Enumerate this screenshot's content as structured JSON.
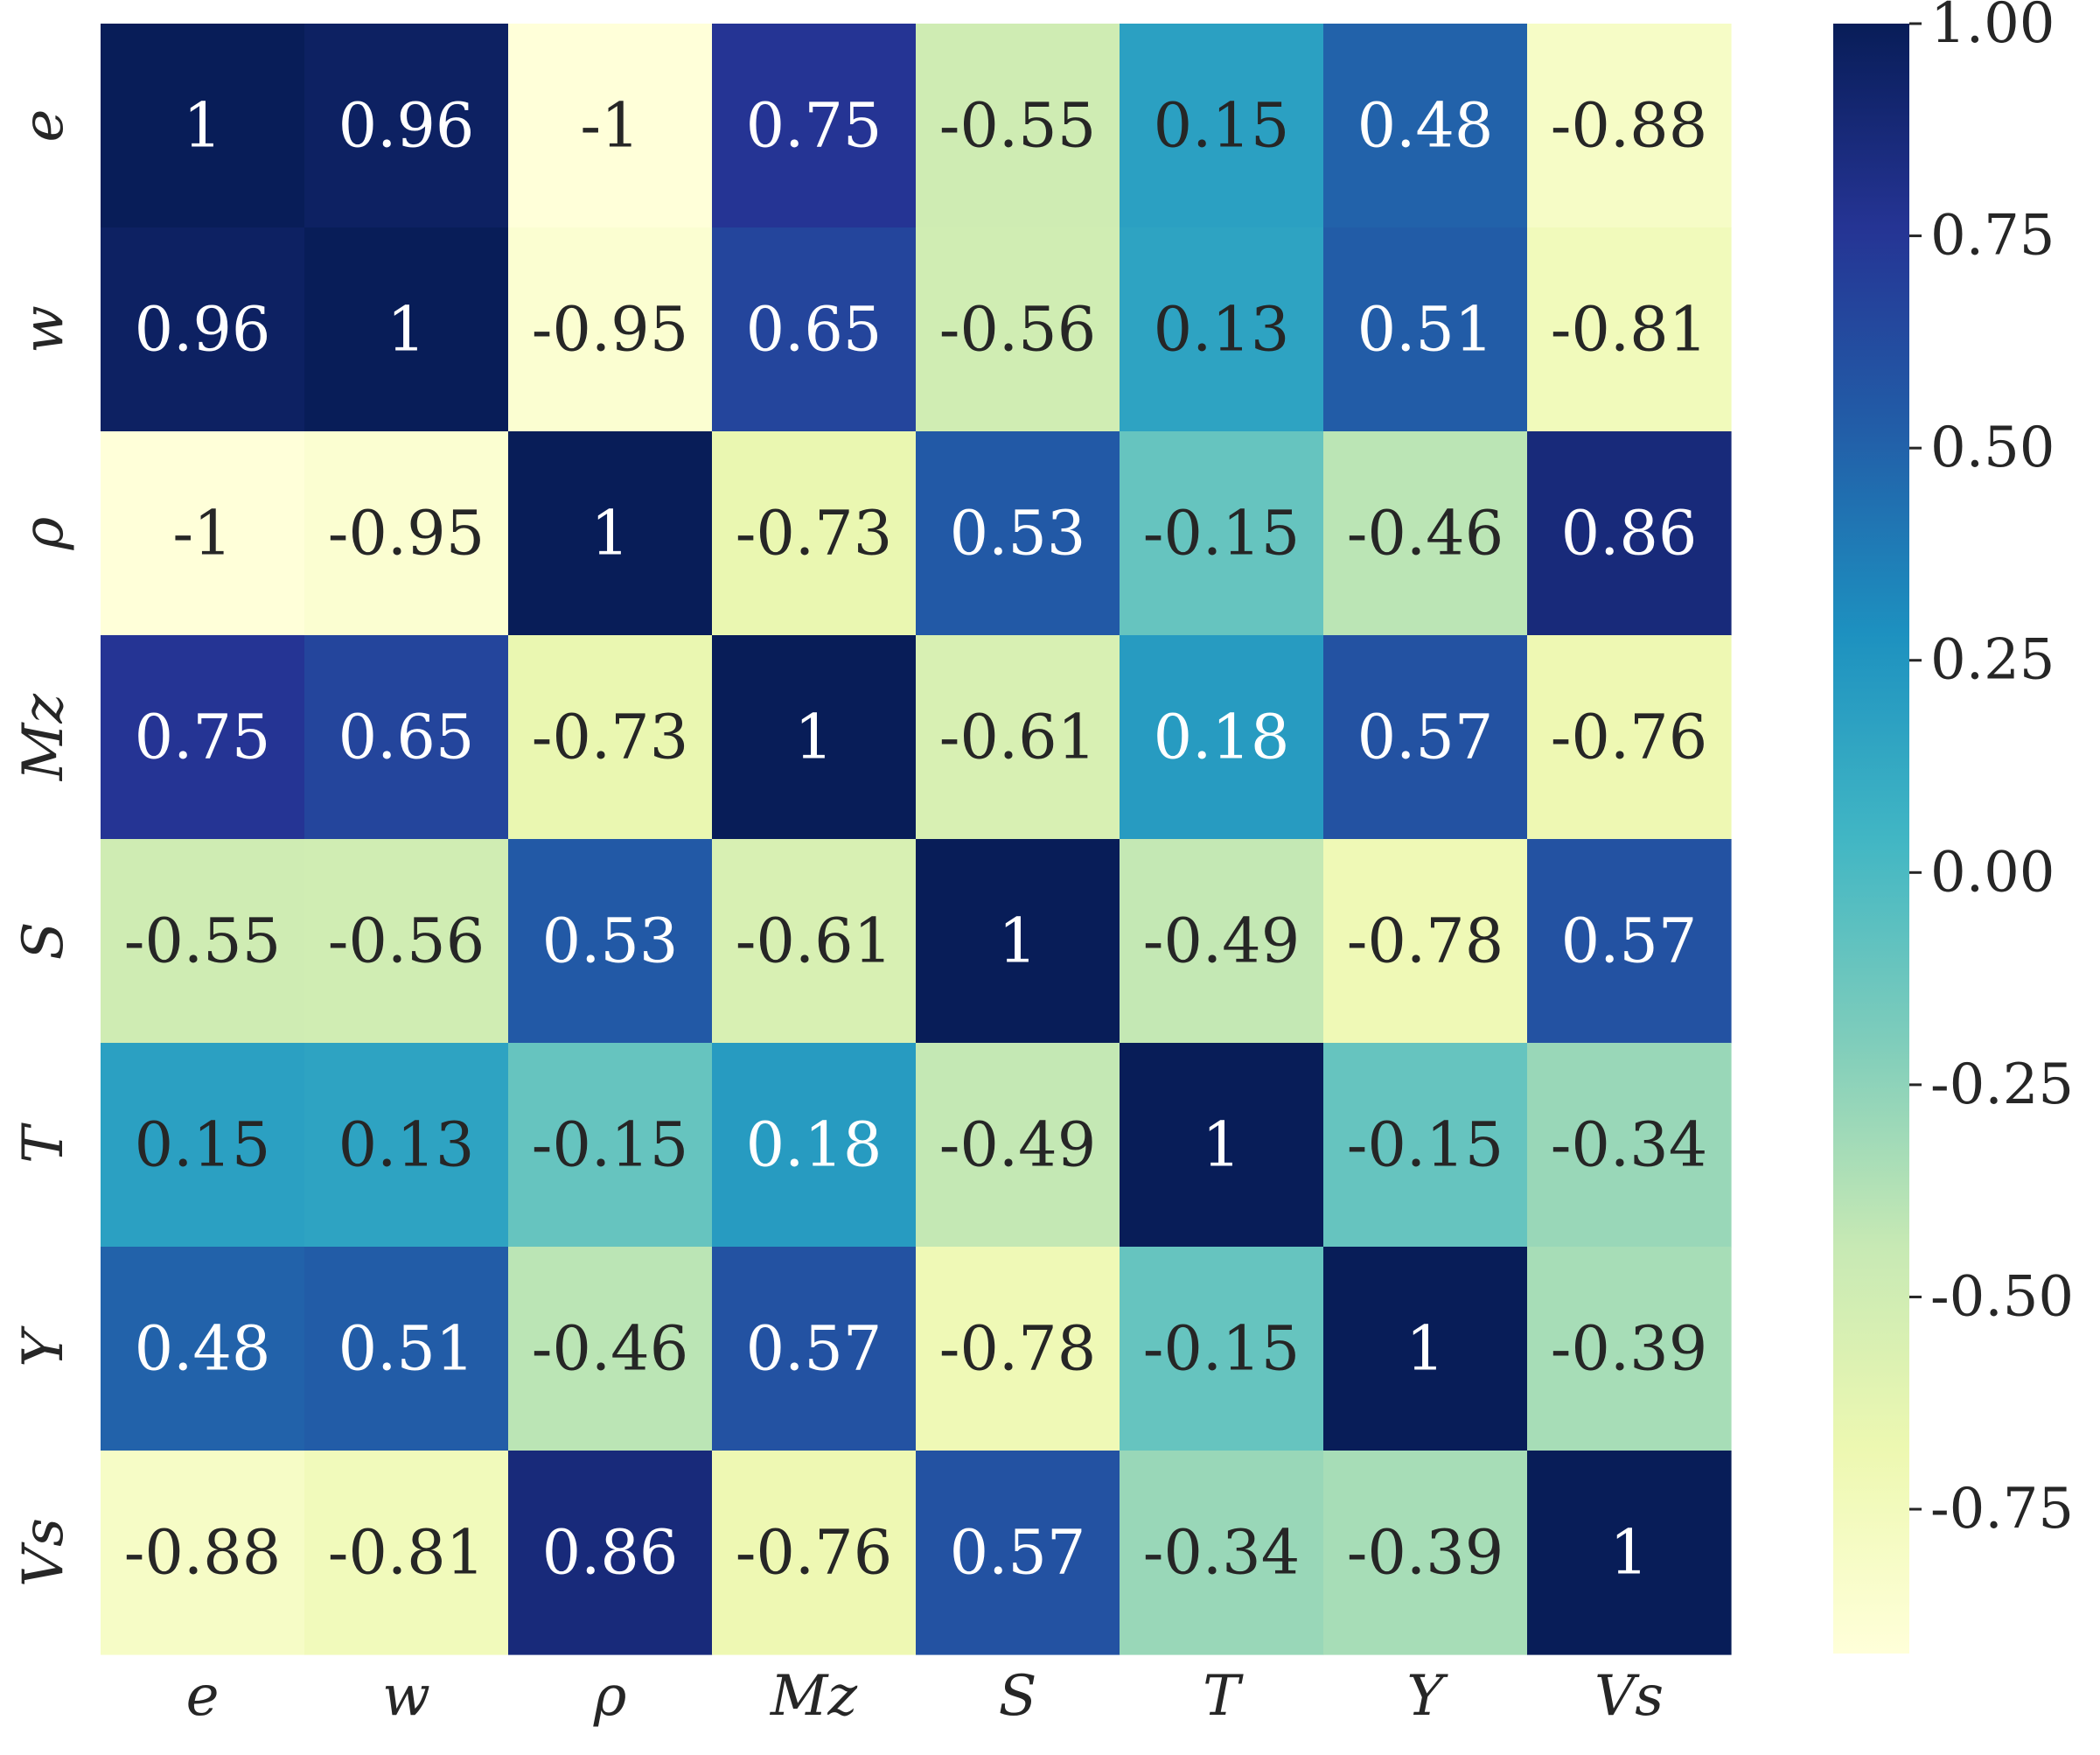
{
  "chart_data": {
    "type": "heatmap",
    "title": "",
    "xlabel": "",
    "ylabel": "",
    "categories": [
      "e",
      "w",
      "ρ",
      "Mz",
      "S",
      "T",
      "Y",
      "Vs"
    ],
    "x_labels": [
      "e",
      "w",
      "ρ",
      "Mz",
      "S",
      "T",
      "Y",
      "Vs"
    ],
    "y_labels": [
      "e",
      "w",
      "ρ",
      "Mz",
      "S",
      "T",
      "Y",
      "Vs"
    ],
    "values": [
      [
        1,
        0.96,
        -1,
        0.75,
        -0.55,
        0.15,
        0.48,
        -0.88
      ],
      [
        0.96,
        1,
        -0.95,
        0.65,
        -0.56,
        0.13,
        0.51,
        -0.81
      ],
      [
        -1,
        -0.95,
        1,
        -0.73,
        0.53,
        -0.15,
        -0.46,
        0.86
      ],
      [
        0.75,
        0.65,
        -0.73,
        1,
        -0.61,
        0.18,
        0.57,
        -0.76
      ],
      [
        -0.55,
        -0.56,
        0.53,
        -0.61,
        1,
        -0.49,
        -0.78,
        0.57
      ],
      [
        0.15,
        0.13,
        -0.15,
        0.18,
        -0.49,
        1,
        -0.15,
        -0.34
      ],
      [
        0.48,
        0.51,
        -0.46,
        0.57,
        -0.78,
        -0.15,
        1,
        -0.39
      ],
      [
        -0.88,
        -0.81,
        0.86,
        -0.76,
        0.57,
        -0.34,
        -0.39,
        1
      ]
    ],
    "value_labels": [
      [
        "1",
        "0.96",
        "-1",
        "0.75",
        "-0.55",
        "0.15",
        "0.48",
        "-0.88"
      ],
      [
        "0.96",
        "1",
        "-0.95",
        "0.65",
        "-0.56",
        "0.13",
        "0.51",
        "-0.81"
      ],
      [
        "-1",
        "-0.95",
        "1",
        "-0.73",
        "0.53",
        "-0.15",
        "-0.46",
        "0.86"
      ],
      [
        "0.75",
        "0.65",
        "-0.73",
        "1",
        "-0.61",
        "0.18",
        "0.57",
        "-0.76"
      ],
      [
        "-0.55",
        "-0.56",
        "0.53",
        "-0.61",
        "1",
        "-0.49",
        "-0.78",
        "0.57"
      ],
      [
        "0.15",
        "0.13",
        "-0.15",
        "0.18",
        "-0.49",
        "1",
        "-0.15",
        "-0.34"
      ],
      [
        "0.48",
        "0.51",
        "-0.46",
        "0.57",
        "-0.78",
        "-0.15",
        "1",
        "-0.39"
      ],
      [
        "-0.88",
        "-0.81",
        "0.86",
        "-0.76",
        "0.57",
        "-0.34",
        "-0.39",
        "1"
      ]
    ],
    "colormap": "YlGnBu",
    "colormap_stops": [
      "#ffffd9",
      "#edf8b1",
      "#c7e9b4",
      "#7fcdbb",
      "#41b6c4",
      "#1d91c0",
      "#225ea8",
      "#253494",
      "#081d58"
    ],
    "vmin": -1,
    "vmax": 1,
    "colorbar_ticks": [
      1.0,
      0.75,
      0.5,
      0.25,
      0.0,
      -0.25,
      -0.5,
      -0.75
    ],
    "colorbar_tick_labels": [
      "1.00",
      "0.75",
      "0.50",
      "0.25",
      "0.00",
      "-0.25",
      "-0.50",
      "-0.75"
    ],
    "annotation_dark_color": "#262626",
    "annotation_light_color": "#ffffff",
    "grid": false,
    "legend": "colorbar-right"
  }
}
